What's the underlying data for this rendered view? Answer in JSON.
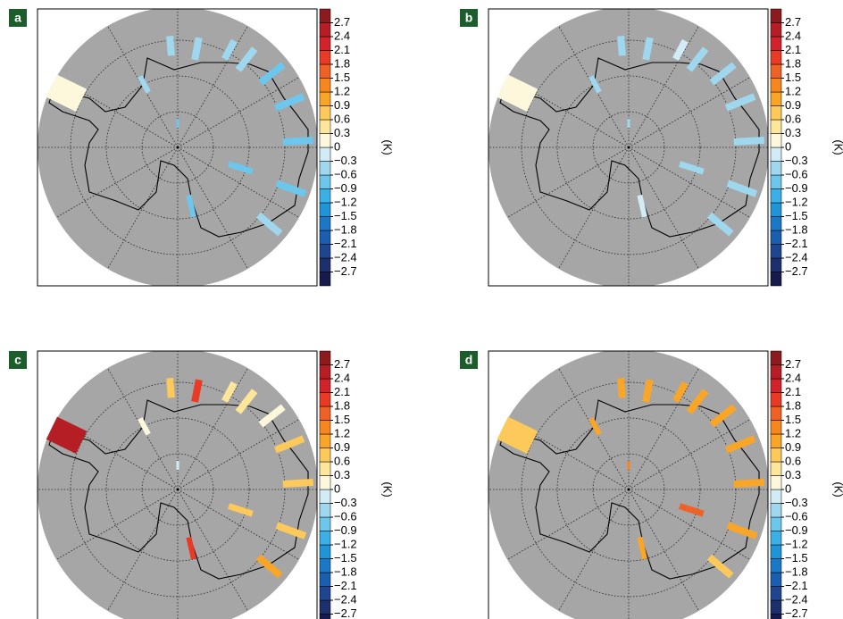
{
  "colorbar": {
    "unit": "(K)",
    "ticks": [
      2.7,
      2.4,
      2.1,
      1.8,
      1.5,
      1.2,
      0.9,
      0.6,
      0.3,
      0,
      {
        "value": -0.3,
        "label": "−0.3"
      },
      {
        "value": -0.6,
        "label": "−0.6"
      },
      {
        "value": -0.9,
        "label": "−0.9"
      },
      {
        "value": -1.2,
        "label": "−1.2"
      },
      {
        "value": -1.5,
        "label": "−1.5"
      },
      {
        "value": -1.8,
        "label": "−1.8"
      },
      {
        "value": -2.1,
        "label": "−2.1"
      },
      {
        "value": -2.4,
        "label": "−2.4"
      },
      {
        "value": -2.7,
        "label": "−2.7"
      }
    ],
    "colors": [
      "#161a4d",
      "#1e2f6e",
      "#1f4590",
      "#1a5eb0",
      "#1a78c6",
      "#1f95d8",
      "#3bb0e6",
      "#6dc6ec",
      "#9fd8ee",
      "#d2ecf5",
      "#fdf7dc",
      "#fde59a",
      "#fcc95a",
      "#f9a628",
      "#f6871f",
      "#ef6225",
      "#e93a26",
      "#d2222b",
      "#b51e25",
      "#8c1a1e"
    ]
  },
  "panels": [
    {
      "label": "a",
      "values": [
        0.15,
        -0.5,
        -0.5,
        -0.5,
        -0.5,
        -0.8,
        -0.8,
        -0.8,
        -0.8,
        -0.5,
        -0.8,
        -0.8,
        -0.8,
        -0.5
      ]
    },
    {
      "label": "b",
      "values": [
        0.15,
        -0.4,
        -0.5,
        -0.2,
        -0.4,
        -0.5,
        -0.5,
        -0.5,
        -0.4,
        -0.4,
        -0.4,
        -0.1,
        -0.4,
        -0.4
      ]
    },
    {
      "label": "c",
      "values": [
        2.6,
        0.8,
        1.9,
        0.4,
        0.5,
        0.1,
        0.7,
        0.7,
        0.8,
        0.9,
        0.8,
        2.0,
        -0.1,
        0.1
      ]
    },
    {
      "label": "d",
      "values": [
        0.7,
        0.9,
        1.0,
        1.0,
        1.0,
        0.9,
        0.9,
        0.9,
        0.9,
        0.7,
        1.6,
        0.9,
        1.4,
        0.9
      ]
    }
  ]
}
